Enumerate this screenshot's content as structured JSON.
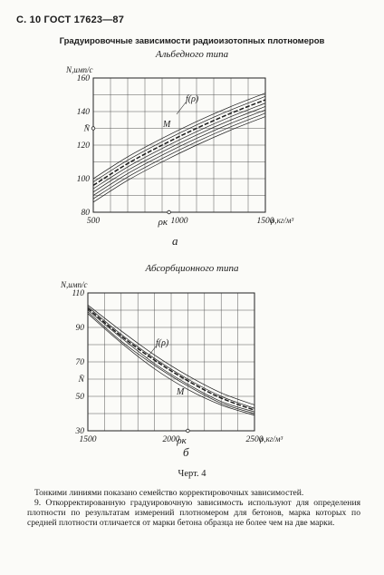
{
  "header": {
    "page_ref": "С. 10 ГОСТ 17623—87"
  },
  "figure_title": "Градуировочные зависимости радиоизотопных плотномеров",
  "chart_data": [
    {
      "type": "line",
      "subtitle": "Альбедного типа",
      "panel_letter": "а",
      "ylabel": "N,имп/с",
      "xlabel": "ρ,кг/м³",
      "xlim": [
        500,
        1500
      ],
      "ylim": [
        80,
        160
      ],
      "x_ticks": [
        "500",
        "1000",
        "1500"
      ],
      "y_ticks": [
        "80",
        "100",
        "120",
        "140",
        "160"
      ],
      "x_marker_label": "ρк",
      "x_marker_value": 940,
      "y_marker_label": "N̄",
      "y_marker_value": 130,
      "curve_label": "f(ρ)",
      "point_label": "M",
      "grid": true,
      "series": [
        {
          "x": [
            500,
            700,
            900,
            1100,
            1300,
            1500
          ],
          "values": [
            100,
            113,
            124,
            134,
            143,
            151
          ]
        },
        {
          "x": [
            500,
            700,
            900,
            1100,
            1300,
            1500
          ],
          "values": [
            98,
            111,
            122,
            132,
            141,
            149
          ]
        },
        {
          "x": [
            500,
            700,
            900,
            1100,
            1300,
            1500
          ],
          "values": [
            96,
            109,
            120,
            130,
            139,
            147
          ]
        },
        {
          "x": [
            500,
            700,
            900,
            1100,
            1300,
            1500
          ],
          "values": [
            94,
            107,
            118,
            128,
            137,
            145
          ]
        },
        {
          "x": [
            500,
            700,
            900,
            1100,
            1300,
            1500
          ],
          "values": [
            92,
            105,
            116,
            126,
            135,
            143
          ]
        },
        {
          "x": [
            500,
            700,
            900,
            1100,
            1300,
            1500
          ],
          "values": [
            90,
            103,
            114,
            124,
            133,
            141
          ]
        },
        {
          "x": [
            500,
            700,
            900,
            1100,
            1300,
            1500
          ],
          "values": [
            88,
            101,
            112,
            122,
            131,
            139
          ]
        },
        {
          "x": [
            500,
            700,
            900,
            1100,
            1300,
            1500
          ],
          "values": [
            86,
            99,
            110,
            120,
            129,
            137
          ]
        }
      ]
    },
    {
      "type": "line",
      "subtitle": "Абсорбционного типа",
      "panel_letter": "б",
      "ylabel": "N,имп/с",
      "xlabel": "ρ,кг/м³",
      "xlim": [
        1500,
        2500
      ],
      "ylim": [
        30,
        110
      ],
      "x_ticks": [
        "1500",
        "2000",
        "2500"
      ],
      "y_ticks": [
        "30",
        "50",
        "70",
        "90",
        "110"
      ],
      "y_tick_extra": [
        {
          "label": "N̄",
          "value": 60
        }
      ],
      "x_marker_label": "ρк",
      "x_marker_value": 2100,
      "curve_label": "f(ρ)",
      "point_label": "M",
      "grid": true,
      "series": [
        {
          "x": [
            1500,
            1700,
            1900,
            2100,
            2300,
            2500
          ],
          "values": [
            103,
            88,
            74,
            62,
            52,
            45
          ]
        },
        {
          "x": [
            1500,
            1700,
            1900,
            2100,
            2300,
            2500
          ],
          "values": [
            102,
            86,
            72,
            60,
            50,
            43
          ]
        },
        {
          "x": [
            1500,
            1700,
            1900,
            2100,
            2300,
            2500
          ],
          "values": [
            101,
            85,
            71,
            59,
            49,
            42
          ]
        },
        {
          "x": [
            1500,
            1700,
            1900,
            2100,
            2300,
            2500
          ],
          "values": [
            100,
            84,
            69,
            57,
            47,
            41
          ]
        },
        {
          "x": [
            1500,
            1700,
            1900,
            2100,
            2300,
            2500
          ],
          "values": [
            99,
            82,
            68,
            56,
            46,
            40
          ]
        },
        {
          "x": [
            1500,
            1700,
            1900,
            2100,
            2300,
            2500
          ],
          "values": [
            98,
            81,
            66,
            54,
            45,
            39
          ]
        }
      ]
    }
  ],
  "caption": "Черт. 4",
  "paragraphs": [
    "Тонкими линиями показано семейство корректировочных зависимостей.",
    "9. Откорректированную градуировочную зависимость используют для определения плотности по результатам измерений плотномером для бетонов, марка которых по средней плотности отличается от марки бетона образца не более чем на две марки."
  ]
}
